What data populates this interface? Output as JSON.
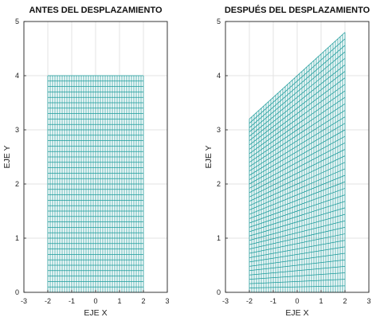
{
  "chart_data": [
    {
      "type": "mesh",
      "title": "ANTES DEL DESPLAZAMIENTO",
      "xlabel": "EJE X",
      "ylabel": "EJE Y",
      "xlim": [
        -3,
        3
      ],
      "ylim": [
        0,
        5
      ],
      "xticks": [
        "-3",
        "-2",
        "-1",
        "0",
        "1",
        "2",
        "3"
      ],
      "yticks": [
        "0",
        "1",
        "2",
        "3",
        "4",
        "5"
      ],
      "grid": true,
      "mesh": {
        "x_range": [
          -2,
          2
        ],
        "x_lines": 41,
        "y_lines": 41,
        "bottom": {
          "left": 0,
          "right": 0
        },
        "top": {
          "left": 4,
          "right": 4
        }
      },
      "color": "#1a9a9a"
    },
    {
      "type": "mesh",
      "title": "DESPUÉS DEL DESPLAZAMIENTO",
      "xlabel": "EJE X",
      "ylabel": "EJE Y",
      "xlim": [
        -3,
        3
      ],
      "ylim": [
        0,
        5
      ],
      "xticks": [
        "-3",
        "-2",
        "-1",
        "0",
        "1",
        "2",
        "3"
      ],
      "yticks": [
        "0",
        "1",
        "2",
        "3",
        "4",
        "5"
      ],
      "grid": true,
      "mesh": {
        "x_range": [
          -2,
          2
        ],
        "x_lines": 41,
        "y_lines": 41,
        "bottom": {
          "left": 0,
          "right": 0
        },
        "top": {
          "left": 3.2,
          "right": 4.8
        }
      },
      "color": "#1a9a9a"
    }
  ]
}
